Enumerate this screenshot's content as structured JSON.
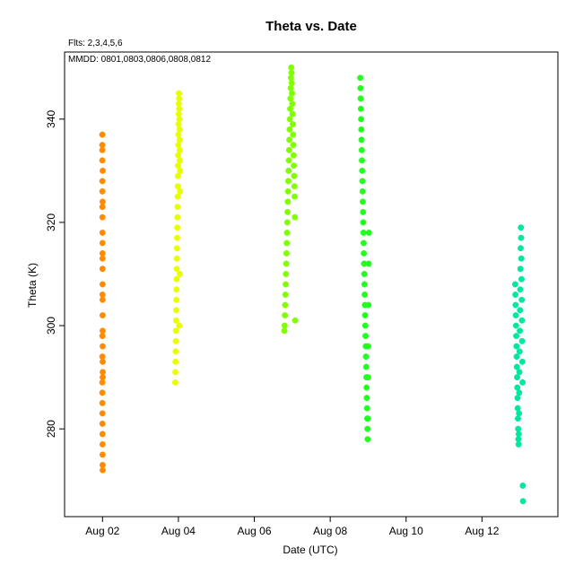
{
  "chart_data": {
    "type": "scatter",
    "title": "Theta  vs. Date",
    "annotations": {
      "flights": "Flts: 2,3,4,5,6",
      "mmdd": "MMDD: 0801,0803,0806,0808,0812"
    },
    "xlabel": "Date (UTC)",
    "ylabel": "Theta (K)",
    "x_ticks": [
      {
        "value": "2024-08-02",
        "label": "Aug 02"
      },
      {
        "value": "2024-08-04",
        "label": "Aug 04"
      },
      {
        "value": "2024-08-06",
        "label": "Aug 06"
      },
      {
        "value": "2024-08-08",
        "label": "Aug 08"
      },
      {
        "value": "2024-08-10",
        "label": "Aug 10"
      },
      {
        "value": "2024-08-12",
        "label": "Aug 12"
      }
    ],
    "y_ticks": [
      280,
      300,
      320,
      340
    ],
    "xlim": [
      "2024-08-01T00:00",
      "2024-08-14T00:00"
    ],
    "ylim": [
      263,
      353
    ],
    "grid": false,
    "legend": "none",
    "series": [
      {
        "color": "#ff8c00",
        "x": [
          "2024-08-01T23:52",
          "2024-08-01T23:52",
          "2024-08-01T23:53",
          "2024-08-01T23:54",
          "2024-08-01T23:55",
          "2024-08-01T23:56",
          "2024-08-01T23:57",
          "2024-08-01T23:58",
          "2024-08-01T23:59",
          "2024-08-02T00:00",
          "2024-08-02T00:01",
          "2024-08-02T00:02",
          "2024-08-02T00:03",
          "2024-08-02T00:04",
          "2024-08-02T00:05",
          "2024-08-02T00:06",
          "2024-08-02T00:07",
          "2024-08-02T00:08",
          "2024-08-01T23:52",
          "2024-08-01T23:53",
          "2024-08-01T23:55",
          "2024-08-01T23:57",
          "2024-08-01T23:58",
          "2024-08-02T00:00",
          "2024-08-02T00:02",
          "2024-08-02T00:03",
          "2024-08-02T00:05",
          "2024-08-02T00:06",
          "2024-08-02T00:07",
          "2024-08-01T23:54",
          "2024-08-01T23:56",
          "2024-08-01T23:59",
          "2024-08-02T00:01",
          "2024-08-02T00:04",
          "2024-08-02T00:08",
          "2024-08-01T23:53"
        ],
        "y": [
          337,
          334,
          332,
          328,
          326,
          323,
          321,
          318,
          316,
          313,
          311,
          308,
          305,
          302,
          299,
          296,
          293,
          291,
          289,
          287,
          285,
          283,
          281,
          279,
          277,
          275,
          273,
          272,
          290,
          294,
          298,
          306,
          314,
          324,
          330,
          335
        ]
      },
      {
        "color": "#e8ff00",
        "x": [
          "2024-08-03T22:00",
          "2024-08-03T22:05",
          "2024-08-03T22:10",
          "2024-08-03T22:15",
          "2024-08-03T22:20",
          "2024-08-03T22:25",
          "2024-08-03T22:30",
          "2024-08-03T22:35",
          "2024-08-03T22:40",
          "2024-08-03T22:45",
          "2024-08-03T22:50",
          "2024-08-03T22:55",
          "2024-08-03T23:00",
          "2024-08-03T23:05",
          "2024-08-03T23:10",
          "2024-08-03T23:15",
          "2024-08-03T23:20",
          "2024-08-03T23:25",
          "2024-08-03T23:30",
          "2024-08-03T23:35",
          "2024-08-03T23:40",
          "2024-08-03T23:45",
          "2024-08-03T23:50",
          "2024-08-03T23:55",
          "2024-08-04T00:00",
          "2024-08-04T00:05",
          "2024-08-04T00:10",
          "2024-08-04T00:15",
          "2024-08-04T00:20",
          "2024-08-04T00:25",
          "2024-08-04T00:30",
          "2024-08-04T00:35",
          "2024-08-04T00:40",
          "2024-08-04T00:45",
          "2024-08-04T00:50",
          "2024-08-04T00:55",
          "2024-08-04T01:00",
          "2024-08-04T01:00",
          "2024-08-04T00:50",
          "2024-08-04T00:30"
        ],
        "y": [
          289,
          291,
          293,
          295,
          297,
          299,
          301,
          303,
          305,
          307,
          309,
          311,
          313,
          315,
          317,
          319,
          321,
          323,
          325,
          327,
          329,
          331,
          333,
          335,
          337,
          339,
          341,
          343,
          345,
          344,
          342,
          340,
          338,
          336,
          334,
          332,
          330,
          326,
          310,
          300
        ]
      },
      {
        "color": "#80ff00",
        "x": [
          "2024-08-06T19:00",
          "2024-08-06T19:10",
          "2024-08-06T19:20",
          "2024-08-06T19:30",
          "2024-08-06T19:40",
          "2024-08-06T19:50",
          "2024-08-06T20:00",
          "2024-08-06T20:10",
          "2024-08-06T20:20",
          "2024-08-06T20:30",
          "2024-08-06T20:40",
          "2024-08-06T20:50",
          "2024-08-06T21:00",
          "2024-08-06T21:10",
          "2024-08-06T21:20",
          "2024-08-06T21:30",
          "2024-08-06T21:40",
          "2024-08-06T21:50",
          "2024-08-06T22:00",
          "2024-08-06T22:10",
          "2024-08-06T22:20",
          "2024-08-06T22:30",
          "2024-08-06T22:40",
          "2024-08-06T22:50",
          "2024-08-06T23:00",
          "2024-08-06T23:10",
          "2024-08-06T23:20",
          "2024-08-06T23:30",
          "2024-08-06T23:40",
          "2024-08-06T23:50",
          "2024-08-07T00:00",
          "2024-08-07T00:10",
          "2024-08-07T00:20",
          "2024-08-07T00:30",
          "2024-08-07T00:40",
          "2024-08-07T00:50",
          "2024-08-07T01:00",
          "2024-08-07T01:10",
          "2024-08-07T01:20",
          "2024-08-07T01:30",
          "2024-08-07T01:40",
          "2024-08-07T01:50"
        ],
        "y": [
          299,
          300,
          302,
          304,
          306,
          308,
          310,
          312,
          314,
          316,
          318,
          320,
          322,
          324,
          326,
          328,
          330,
          332,
          334,
          336,
          338,
          340,
          342,
          344,
          346,
          348,
          350,
          349,
          347,
          345,
          343,
          341,
          339,
          337,
          335,
          333,
          331,
          329,
          327,
          325,
          321,
          301
        ]
      },
      {
        "color": "#20ff20",
        "x": [
          "2024-08-08T19:00",
          "2024-08-08T19:08",
          "2024-08-08T19:16",
          "2024-08-08T19:24",
          "2024-08-08T19:32",
          "2024-08-08T19:40",
          "2024-08-08T19:48",
          "2024-08-08T19:56",
          "2024-08-08T20:04",
          "2024-08-08T20:12",
          "2024-08-08T20:20",
          "2024-08-08T20:28",
          "2024-08-08T20:36",
          "2024-08-08T20:44",
          "2024-08-08T20:52",
          "2024-08-08T21:00",
          "2024-08-08T21:08",
          "2024-08-08T21:16",
          "2024-08-08T21:24",
          "2024-08-08T21:32",
          "2024-08-08T21:40",
          "2024-08-08T21:48",
          "2024-08-08T21:56",
          "2024-08-08T22:04",
          "2024-08-08T22:12",
          "2024-08-08T22:20",
          "2024-08-08T22:28",
          "2024-08-08T22:36",
          "2024-08-08T22:44",
          "2024-08-08T22:52",
          "2024-08-08T23:00",
          "2024-08-08T23:08",
          "2024-08-08T23:16",
          "2024-08-08T23:24",
          "2024-08-08T23:32",
          "2024-08-08T23:40",
          "2024-08-08T23:48",
          "2024-08-08T23:56",
          "2024-08-09T00:04",
          "2024-08-09T00:12",
          "2024-08-09T00:20",
          "2024-08-09T00:28"
        ],
        "y": [
          348,
          346,
          344,
          342,
          340,
          338,
          336,
          334,
          332,
          330,
          328,
          326,
          324,
          322,
          320,
          318,
          316,
          314,
          312,
          310,
          308,
          306,
          304,
          302,
          300,
          298,
          296,
          294,
          292,
          290,
          288,
          286,
          284,
          282,
          280,
          278,
          282,
          290,
          296,
          304,
          312,
          318
        ]
      },
      {
        "color": "#00e8a0",
        "x": [
          "2024-08-12T21:00",
          "2024-08-12T21:08",
          "2024-08-12T21:16",
          "2024-08-12T21:24",
          "2024-08-12T21:32",
          "2024-08-12T21:40",
          "2024-08-12T21:48",
          "2024-08-12T21:56",
          "2024-08-12T22:04",
          "2024-08-12T22:12",
          "2024-08-12T22:20",
          "2024-08-12T22:28",
          "2024-08-12T22:36",
          "2024-08-12T22:44",
          "2024-08-12T22:52",
          "2024-08-12T23:00",
          "2024-08-12T23:08",
          "2024-08-12T23:16",
          "2024-08-12T23:24",
          "2024-08-12T23:32",
          "2024-08-12T23:40",
          "2024-08-12T23:48",
          "2024-08-12T23:56",
          "2024-08-13T00:04",
          "2024-08-13T00:12",
          "2024-08-13T00:20",
          "2024-08-13T00:28",
          "2024-08-13T00:36",
          "2024-08-13T00:44",
          "2024-08-13T00:52",
          "2024-08-13T01:00",
          "2024-08-13T01:08",
          "2024-08-13T01:16",
          "2024-08-13T01:24",
          "2024-08-13T01:32",
          "2024-08-13T01:40",
          "2024-08-13T01:48",
          "2024-08-13T01:56"
        ],
        "y": [
          308,
          306,
          304,
          302,
          300,
          298,
          296,
          294,
          292,
          290,
          288,
          286,
          284,
          282,
          280,
          278,
          277,
          279,
          283,
          287,
          291,
          295,
          299,
          303,
          307,
          311,
          315,
          319,
          317,
          313,
          309,
          305,
          301,
          297,
          293,
          289,
          269,
          266
        ]
      }
    ]
  }
}
